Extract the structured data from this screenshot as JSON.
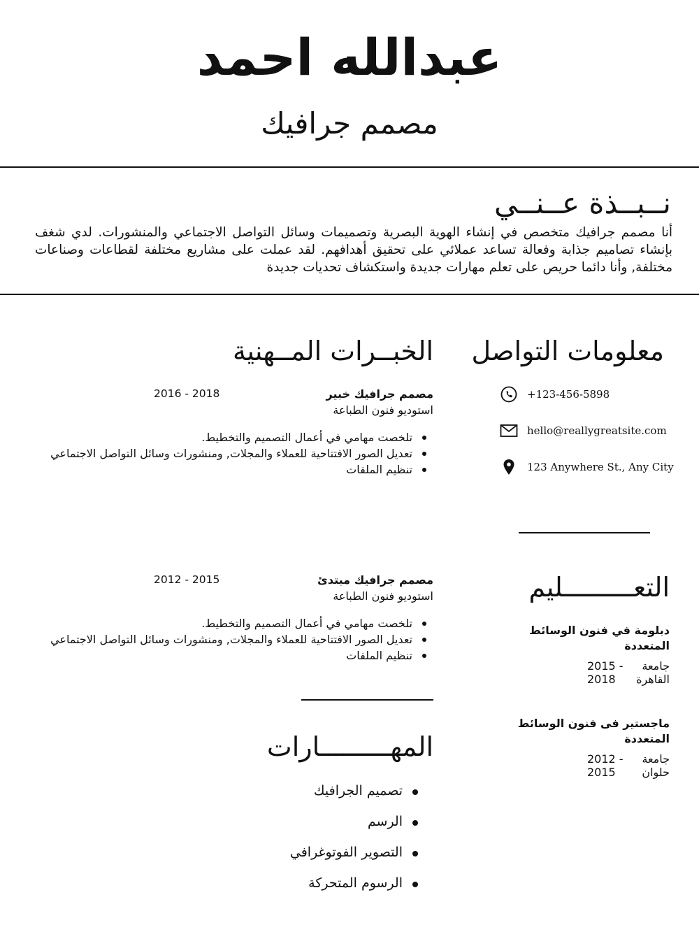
{
  "header": {
    "name": "عبدالله احمد",
    "title": "مصمم جرافيك"
  },
  "about": {
    "heading": "نــبــذة عــنــي",
    "text": "أنا مصمم جرافيك متخصص في إنشاء الهوية البصرية وتصميمات وسائل التواصل الاجتماعي والمنشورات. لدي شغف بإنشاء تصاميم جذابة وفعالة تساعد عملائي على تحقيق أهدافهم. لقد عملت على مشاريع مختلفة لقطاعات وصناعات مختلفة, وأنا دائما حريص على تعلم مهارات جديدة واستكشاف تحديات جديدة"
  },
  "contact": {
    "heading": "معلومات التواصل",
    "items": [
      {
        "icon": "phone-icon",
        "text": "+123-456-5898"
      },
      {
        "icon": "mail-icon",
        "text": "hello@reallygreatsite.com"
      },
      {
        "icon": "location-pin-icon",
        "text": "123 Anywhere St., Any City"
      }
    ]
  },
  "education": {
    "heading": "التعـــــــــليم",
    "items": [
      {
        "title": "دبلومة في فنون الوسائط المتعددة",
        "school": "جامعة القاهرة",
        "years": "2015 - 2018"
      },
      {
        "title": "ماجستير فى فنون الوسائط المتعددة",
        "school": "جامعة حلوان",
        "years": "2012 - 2015"
      }
    ]
  },
  "experience": {
    "heading": "الخبــرات المــهنية",
    "items": [
      {
        "title": "مصمم جرافيك خبير",
        "company": "استوديو فنون الطباعة",
        "years": "2016 - 2018",
        "bullets": [
          "تلخصت مهامي في أعمال التصميم والتخطيط.",
          "تعديل الصور الافتتاحية للعملاء والمجلات, ومنشورات وسائل التواصل الاجتماعي",
          "تنظيم الملفات"
        ]
      },
      {
        "title": "مصمم جرافيك مبتدئ",
        "company": "استوديو فنون الطباعة",
        "years": "2012 - 2015",
        "bullets": [
          "تلخصت مهامي في أعمال التصميم والتخطيط.",
          "تعديل الصور الافتتاحية للعملاء والمجلات, ومنشورات وسائل التواصل الاجتماعي",
          "تنظيم الملفات"
        ]
      }
    ]
  },
  "skills": {
    "heading": "المهـــــــــارات",
    "items": [
      "تصميم الجرافيك",
      "الرسم",
      "التصوير الفوتوغرافي",
      "الرسوم المتحركة"
    ]
  }
}
